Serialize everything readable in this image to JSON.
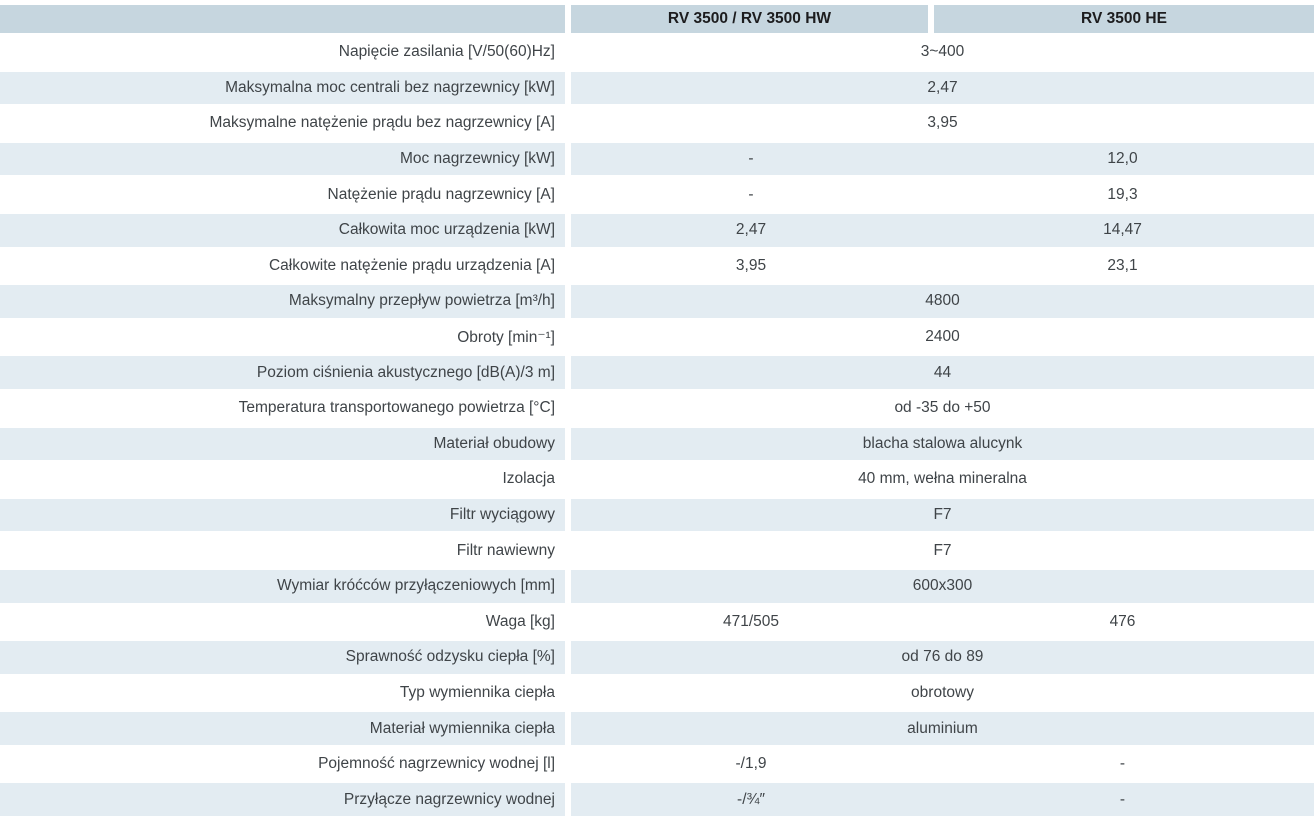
{
  "table": {
    "colors": {
      "header_bg": "#c6d6df",
      "stripe_bg": "#e3ecf2",
      "text": "#3f4448",
      "header_text": "#1c1c1e"
    },
    "columns": [
      "",
      "RV 3500 / RV 3500 HW",
      "RV 3500 HE"
    ],
    "rows": [
      {
        "label": "Napięcie zasilania [V/50(60)Hz]",
        "span": "3~400"
      },
      {
        "label": "Maksymalna moc centrali bez nagrzewnicy [kW]",
        "span": "2,47"
      },
      {
        "label": "Maksymalne natężenie prądu bez nagrzewnicy [A]",
        "span": "3,95"
      },
      {
        "label": "Moc nagrzewnicy [kW]",
        "values": [
          "-",
          "12,0"
        ]
      },
      {
        "label": "Natężenie prądu nagrzewnicy [A]",
        "values": [
          "-",
          "19,3"
        ]
      },
      {
        "label": "Całkowita moc urządzenia [kW]",
        "values": [
          "2,47",
          "14,47"
        ]
      },
      {
        "label": "Całkowite natężenie prądu urządzenia [A]",
        "values": [
          "3,95",
          "23,1"
        ]
      },
      {
        "label": "Maksymalny przepływ powietrza [m³/h]",
        "span": "4800"
      },
      {
        "label": "Obroty [min⁻¹]",
        "span": "2400"
      },
      {
        "label": "Poziom ciśnienia akustycznego [dB(A)/3 m]",
        "span": "44"
      },
      {
        "label": "Temperatura transportowanego powietrza [°C]",
        "span": "od -35 do +50"
      },
      {
        "label": "Materiał obudowy",
        "span": "blacha stalowa alucynk"
      },
      {
        "label": "Izolacja",
        "span": "40 mm, wełna mineralna"
      },
      {
        "label": "Filtr wyciągowy",
        "span": "F7"
      },
      {
        "label": "Filtr nawiewny",
        "span": "F7"
      },
      {
        "label": "Wymiar króćców przyłączeniowych [mm]",
        "span": "600x300"
      },
      {
        "label": "Waga [kg]",
        "values": [
          "471/505",
          "476"
        ]
      },
      {
        "label": "Sprawność odzysku ciepła [%]",
        "span": "od 76 do 89"
      },
      {
        "label": "Typ wymiennika ciepła",
        "span": "obrotowy"
      },
      {
        "label": "Materiał wymiennika ciepła",
        "span": "aluminium"
      },
      {
        "label": "Pojemność nagrzewnicy wodnej [l]",
        "values": [
          "-/1,9",
          "-"
        ]
      },
      {
        "label": "Przyłącze nagrzewnicy wodnej",
        "values": [
          "-/¾″",
          "-"
        ]
      }
    ]
  }
}
